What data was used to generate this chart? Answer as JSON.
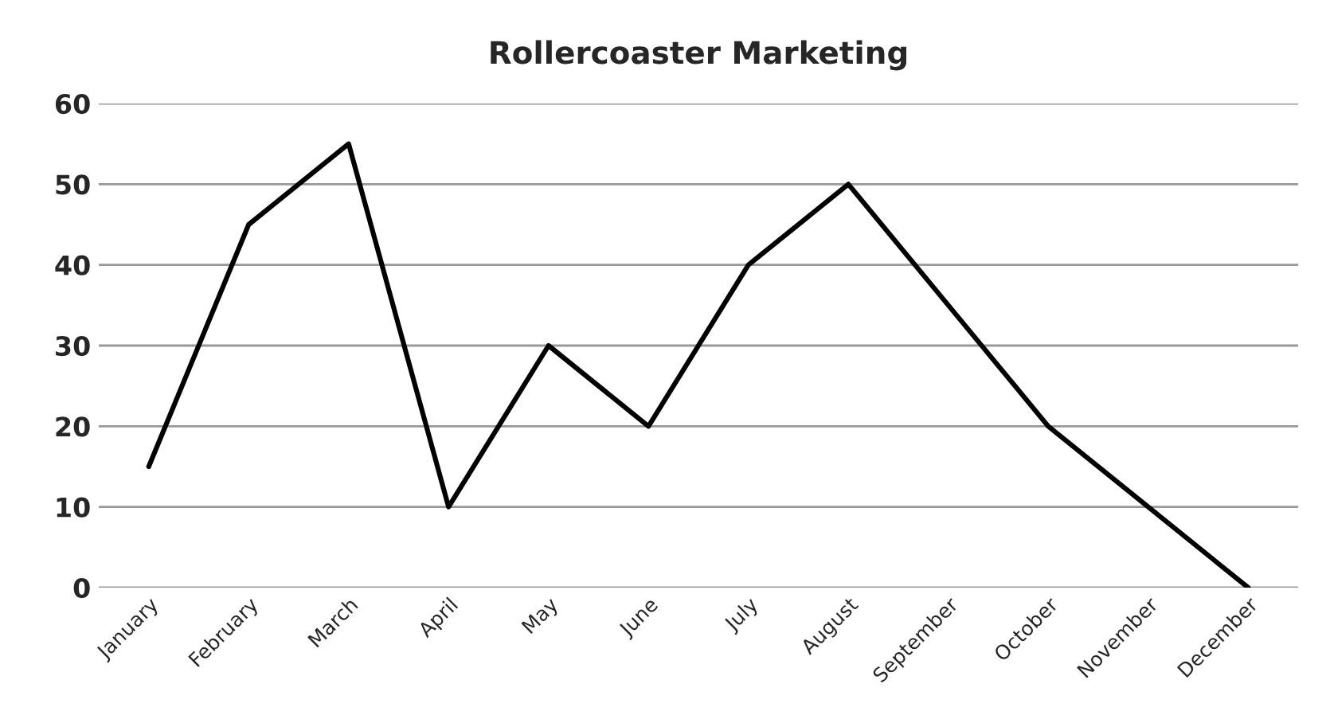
{
  "chart_data": {
    "type": "line",
    "title": "Rollercoaster Marketing",
    "categories": [
      "January",
      "February",
      "March",
      "April",
      "May",
      "June",
      "July",
      "August",
      "September",
      "October",
      "November",
      "December"
    ],
    "series": [
      {
        "color": "#000000",
        "values": [
          15,
          45,
          55,
          10,
          30,
          20,
          40,
          50,
          35,
          20,
          10,
          0
        ]
      }
    ],
    "ylim": [
      0,
      60
    ],
    "yticks": [
      0,
      10,
      20,
      30,
      40,
      50,
      60
    ],
    "grid": "y",
    "legend": false,
    "marker": "none",
    "line_style": "solid"
  }
}
